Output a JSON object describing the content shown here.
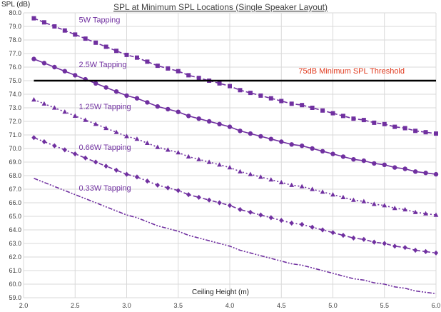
{
  "chart_data": {
    "type": "line",
    "title": "SPL at Minimum SPL Locations (Single Speaker Layout)",
    "xlabel": "Ceiling Height (m)",
    "ylabel": "SPL (dB)",
    "xlim": [
      2.0,
      6.0
    ],
    "ylim": [
      59.0,
      80.0
    ],
    "x_ticks": [
      "2.0",
      "2.5",
      "3.0",
      "3.5",
      "4.0",
      "4.5",
      "5.0",
      "5.5",
      "6.0"
    ],
    "y_ticks": [
      "59.0",
      "60.0",
      "61.0",
      "62.0",
      "63.0",
      "64.0",
      "65.0",
      "66.0",
      "67.0",
      "68.0",
      "69.0",
      "70.0",
      "71.0",
      "72.0",
      "73.0",
      "74.0",
      "75.0",
      "76.0",
      "77.0",
      "78.0",
      "79.0",
      "80.0"
    ],
    "grid": true,
    "series_color": "#7030a0",
    "threshold": {
      "name": "75dB Minimum SPL Threshold",
      "value": 75.0,
      "color": "#000000",
      "label_color": "#e03a1e"
    },
    "x": [
      2.1,
      2.2,
      2.3,
      2.4,
      2.5,
      2.6,
      2.7,
      2.8,
      2.9,
      3.0,
      3.1,
      3.2,
      3.3,
      3.4,
      3.5,
      3.6,
      3.7,
      3.8,
      3.9,
      4.0,
      4.1,
      4.2,
      4.3,
      4.4,
      4.5,
      4.6,
      4.7,
      4.8,
      4.9,
      5.0,
      5.1,
      5.2,
      5.3,
      5.4,
      5.5,
      5.6,
      5.7,
      5.8,
      5.9,
      6.0
    ],
    "series": [
      {
        "name": "5W Tapping",
        "marker": "square",
        "dash": "dash",
        "values": [
          79.6,
          79.3,
          79.0,
          78.7,
          78.4,
          78.1,
          77.8,
          77.5,
          77.2,
          76.9,
          76.7,
          76.4,
          76.1,
          75.9,
          75.7,
          75.4,
          75.2,
          75.0,
          74.8,
          74.6,
          74.3,
          74.1,
          73.9,
          73.7,
          73.5,
          73.3,
          73.2,
          73.0,
          72.8,
          72.6,
          72.4,
          72.2,
          72.1,
          71.9,
          71.8,
          71.6,
          71.5,
          71.3,
          71.2,
          71.1
        ]
      },
      {
        "name": "2.5W Tapping",
        "marker": "circle",
        "dash": "solid",
        "values": [
          76.6,
          76.3,
          76.0,
          75.7,
          75.4,
          75.1,
          74.8,
          74.5,
          74.2,
          73.9,
          73.7,
          73.4,
          73.1,
          72.9,
          72.7,
          72.4,
          72.2,
          72.0,
          71.8,
          71.6,
          71.3,
          71.1,
          70.9,
          70.7,
          70.5,
          70.3,
          70.2,
          70.0,
          69.8,
          69.6,
          69.4,
          69.2,
          69.1,
          68.9,
          68.8,
          68.6,
          68.5,
          68.3,
          68.2,
          68.1
        ]
      },
      {
        "name": "1.25W Tapping",
        "marker": "triangle",
        "dash": "dot",
        "values": [
          73.6,
          73.3,
          73.0,
          72.7,
          72.4,
          72.1,
          71.8,
          71.5,
          71.2,
          70.9,
          70.7,
          70.4,
          70.1,
          69.9,
          69.7,
          69.4,
          69.2,
          69.0,
          68.8,
          68.6,
          68.3,
          68.1,
          67.9,
          67.7,
          67.5,
          67.3,
          67.2,
          67.0,
          66.8,
          66.6,
          66.4,
          66.2,
          66.1,
          65.9,
          65.8,
          65.6,
          65.5,
          65.3,
          65.2,
          65.1
        ]
      },
      {
        "name": "0.66W Tapping",
        "marker": "diamond",
        "dash": "dashdot",
        "values": [
          70.8,
          70.5,
          70.2,
          69.9,
          69.6,
          69.3,
          69.0,
          68.7,
          68.4,
          68.1,
          67.9,
          67.6,
          67.3,
          67.1,
          66.9,
          66.6,
          66.4,
          66.2,
          66.0,
          65.8,
          65.5,
          65.3,
          65.1,
          64.9,
          64.7,
          64.5,
          64.4,
          64.2,
          64.0,
          63.8,
          63.6,
          63.4,
          63.3,
          63.1,
          63.0,
          62.8,
          62.7,
          62.5,
          62.4,
          62.3
        ]
      },
      {
        "name": "0.33W Tapping",
        "marker": "none",
        "dash": "dashdotdot",
        "values": [
          67.8,
          67.5,
          67.2,
          66.9,
          66.6,
          66.3,
          66.0,
          65.7,
          65.4,
          65.1,
          64.9,
          64.6,
          64.3,
          64.1,
          63.9,
          63.6,
          63.4,
          63.2,
          63.0,
          62.8,
          62.5,
          62.3,
          62.1,
          61.9,
          61.7,
          61.5,
          61.4,
          61.2,
          61.0,
          60.8,
          60.6,
          60.4,
          60.3,
          60.1,
          60.0,
          59.8,
          59.7,
          59.5,
          59.4,
          59.3
        ]
      }
    ]
  }
}
